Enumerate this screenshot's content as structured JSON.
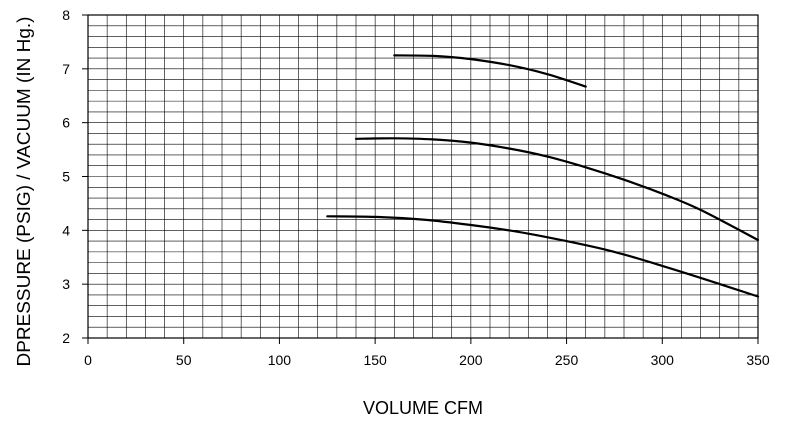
{
  "chart_data": {
    "type": "line",
    "title": "",
    "xlabel": "VOLUME CFM",
    "ylabel": "DPRESSURE (PSIG) / VACUUM (IN Hg.)",
    "xlim": [
      0,
      350
    ],
    "ylim": [
      2,
      8
    ],
    "xticks": [
      "0",
      "50",
      "100",
      "150",
      "200",
      "250",
      "300",
      "350"
    ],
    "yticks": [
      "2",
      "3",
      "4",
      "5",
      "6",
      "7",
      "8"
    ],
    "grid": true,
    "legend": "none",
    "series": [
      {
        "x": [
          160,
          180,
          200,
          220,
          240,
          260
        ],
        "y": [
          7.25,
          7.24,
          7.18,
          7.07,
          6.9,
          6.67
        ]
      },
      {
        "x": [
          140,
          160,
          180,
          200,
          220,
          240,
          260,
          280,
          300,
          320,
          350
        ],
        "y": [
          5.7,
          5.71,
          5.69,
          5.63,
          5.52,
          5.37,
          5.17,
          4.94,
          4.68,
          4.38,
          3.82
        ]
      },
      {
        "x": [
          125,
          150,
          175,
          200,
          225,
          250,
          275,
          300,
          325,
          350
        ],
        "y": [
          4.26,
          4.25,
          4.2,
          4.1,
          3.97,
          3.8,
          3.6,
          3.34,
          3.06,
          2.77
        ]
      }
    ],
    "colors": {
      "line": "#000000",
      "grid": "#000000",
      "background": "#ffffff"
    }
  }
}
